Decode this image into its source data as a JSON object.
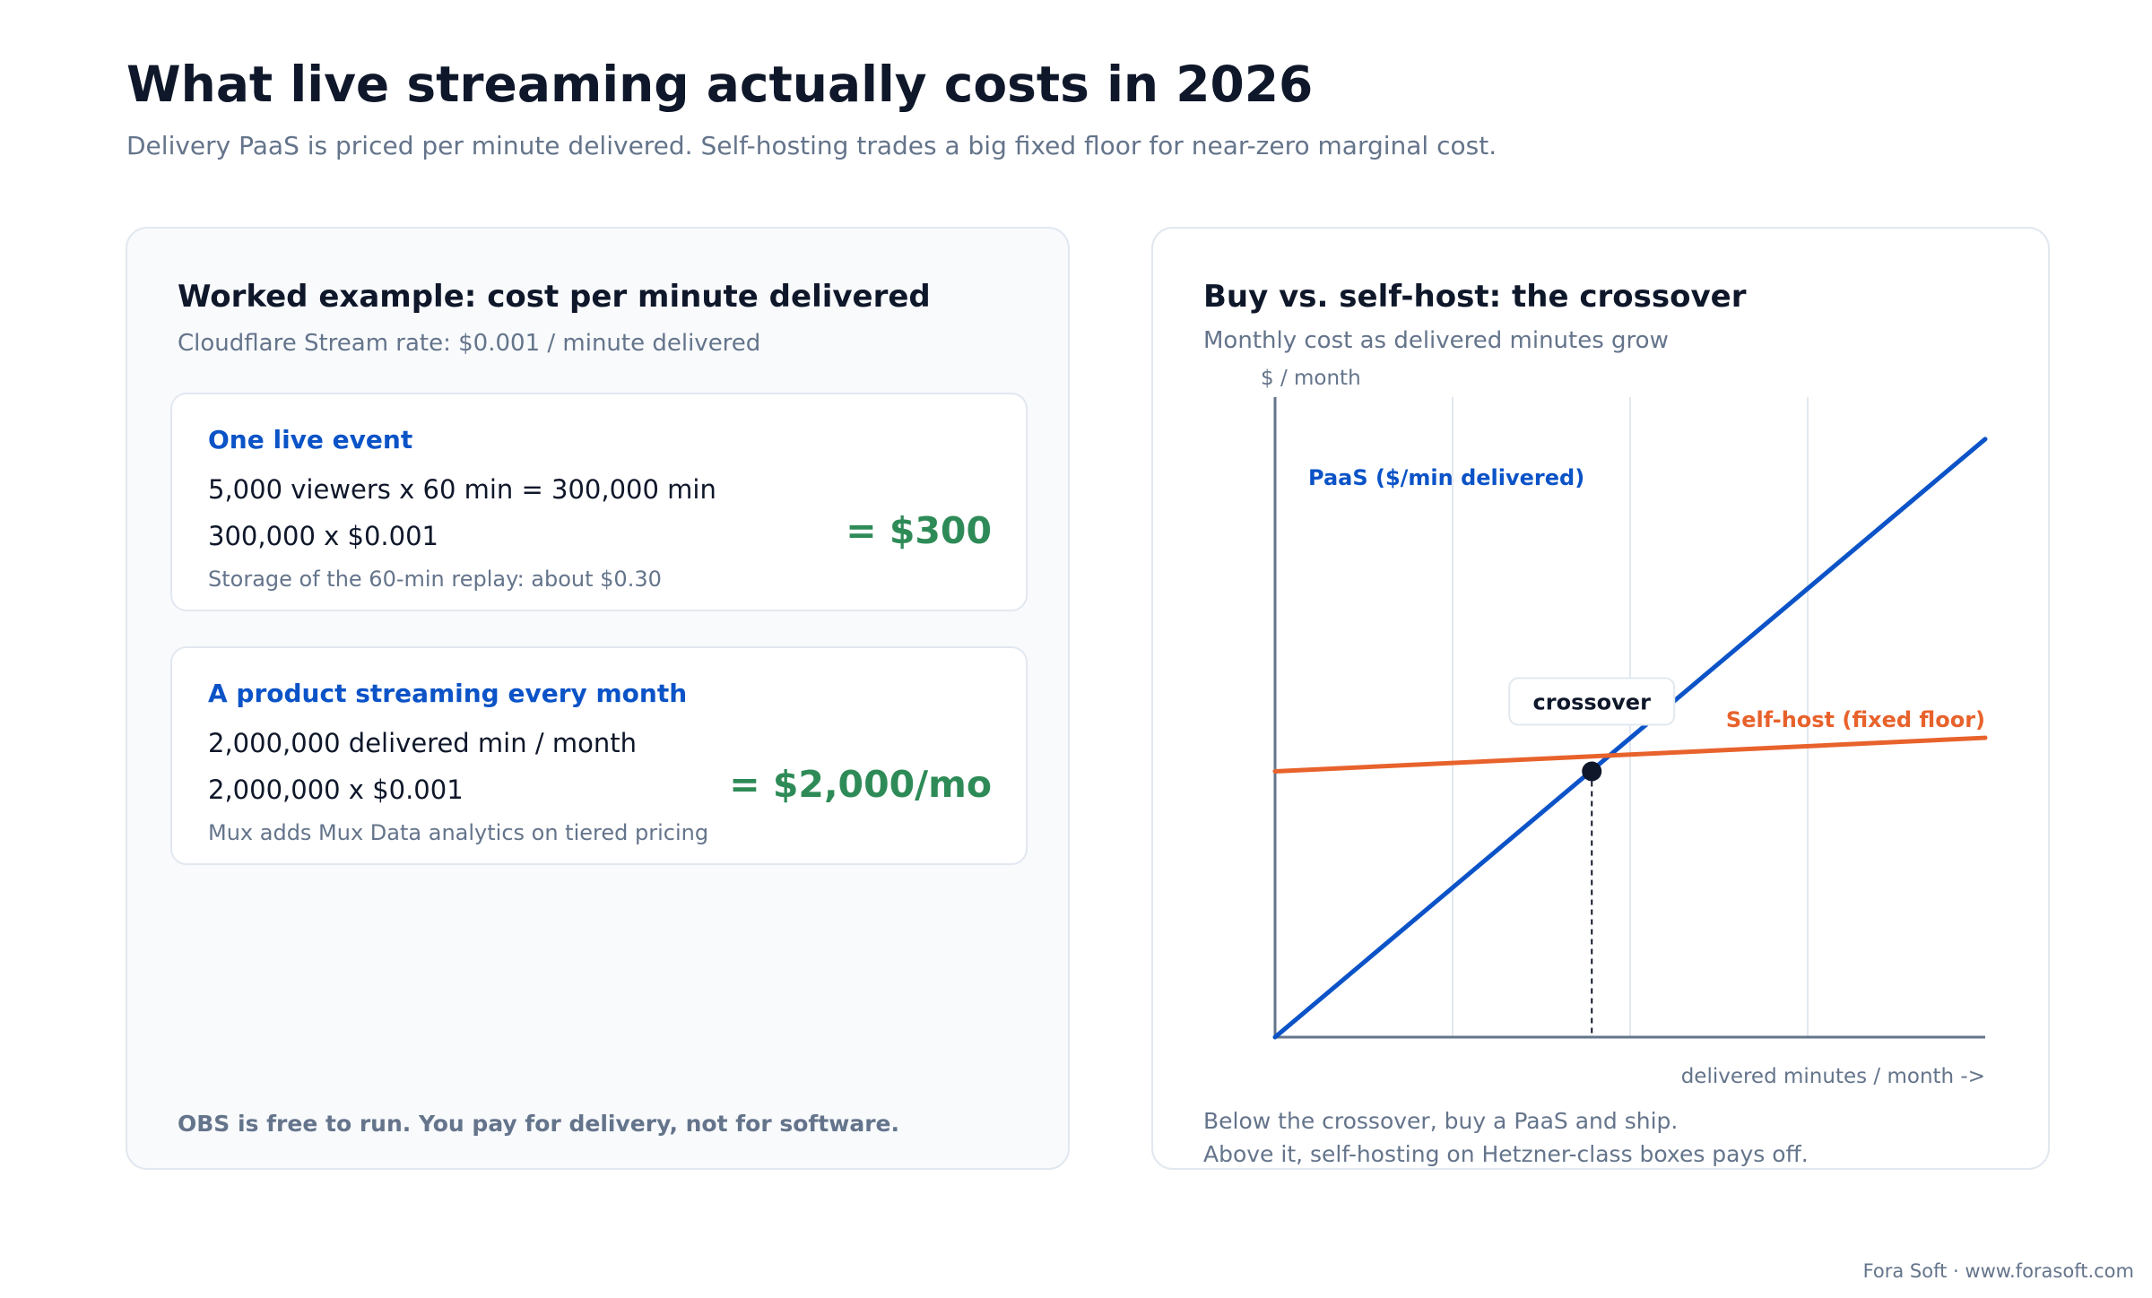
{
  "header": {
    "title": "What live streaming actually costs in 2026",
    "subtitle": "Delivery PaaS is priced per minute delivered. Self-hosting trades a big fixed floor for near-zero marginal cost."
  },
  "left_panel": {
    "title": "Worked example: cost per minute delivered",
    "subtitle": "Cloudflare Stream rate: $0.001 / minute delivered",
    "cards": [
      {
        "title": "One live event",
        "line1": "5,000 viewers x 60 min = 300,000 min",
        "line2": "300,000 x $0.001",
        "total": "= $300",
        "note": "Storage of the 60-min replay: about $0.30"
      },
      {
        "title": "A product streaming every month",
        "line1": "2,000,000 delivered min / month",
        "line2": "2,000,000 x $0.001",
        "total": "= $2,000/mo",
        "note": "Mux adds Mux Data analytics on tiered pricing"
      }
    ],
    "footer": "OBS is free to run. You pay for delivery, not for software."
  },
  "right_panel": {
    "title": "Buy vs. self-host: the crossover",
    "subtitle": "Monthly cost as delivered minutes grow",
    "footer_line1": "Below the crossover, buy a PaaS and ship.",
    "footer_line2": "Above it, self-hosting on Hetzner-class boxes pays off."
  },
  "chart_data": {
    "type": "line",
    "title": "Buy vs. self-host: the crossover",
    "subtitle": "Monthly cost as delivered minutes grow",
    "ylabel": "$ / month",
    "xlabel": "delivered minutes / month ->",
    "xlim": [
      0,
      100
    ],
    "ylim": [
      0,
      100
    ],
    "vertical_gridlines_at": [
      25,
      50,
      75
    ],
    "grid": "vertical",
    "series": [
      {
        "name": "PaaS ($/min delivered)",
        "color": "#0b53c7",
        "points": [
          [
            0,
            0
          ],
          [
            100,
            94.5
          ]
        ]
      },
      {
        "name": "Self-host (fixed floor)",
        "color": "#e8622c",
        "points": [
          [
            0,
            42
          ],
          [
            100,
            47.3
          ]
        ]
      }
    ],
    "annotations": [
      {
        "label": "crossover",
        "x": 44.6,
        "y": 42
      }
    ]
  },
  "credit": "Fora Soft · www.forasoft.com"
}
